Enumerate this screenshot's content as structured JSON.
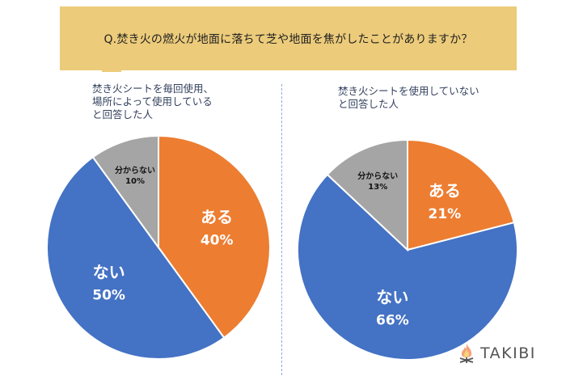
{
  "title": "Q.焚き火の燃火が地面に落ちて芝や地面を焦がしたことがありますか？",
  "logo": {
    "text": "TAKIBI",
    "icon": "campfire-icon"
  },
  "colors": {
    "title_bg": "#ECCB7A",
    "orange": "#ED7D31",
    "blue": "#4472C4",
    "gray": "#A5A5A5"
  },
  "chart_data": [
    {
      "type": "pie",
      "title": "焚き火シートを毎回使用、\n場所によって使用している\nと回答した人",
      "slices": [
        {
          "label": "ある",
          "value": 40,
          "display": "40%",
          "color": "#ED7D31"
        },
        {
          "label": "ない",
          "value": 50,
          "display": "50%",
          "color": "#4472C4"
        },
        {
          "label": "分からない",
          "value": 10,
          "display": "10%",
          "color": "#A5A5A5"
        }
      ]
    },
    {
      "type": "pie",
      "title": "焚き火シートを使用していない\nと回答した人",
      "slices": [
        {
          "label": "ある",
          "value": 21,
          "display": "21%",
          "color": "#ED7D31"
        },
        {
          "label": "ない",
          "value": 66,
          "display": "66%",
          "color": "#4472C4"
        },
        {
          "label": "分からない",
          "value": 13,
          "display": "13%",
          "color": "#A5A5A5"
        }
      ]
    }
  ]
}
